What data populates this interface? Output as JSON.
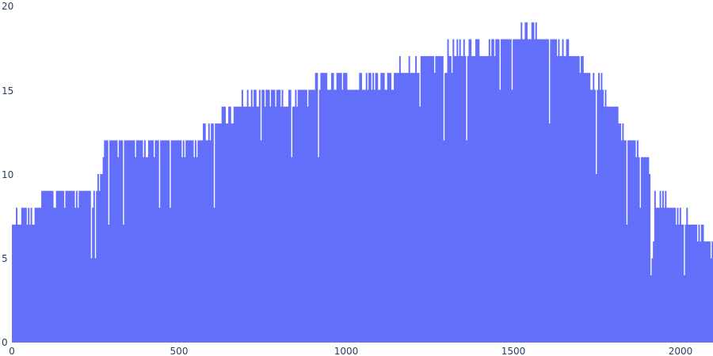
{
  "chart_data": {
    "type": "bar",
    "title": "",
    "xlabel": "",
    "ylabel": "",
    "xlim": [
      0,
      2100
    ],
    "ylim": [
      0,
      20
    ],
    "grid": false,
    "legend": "none",
    "bar_color": "#636efa",
    "x_ticks": [
      "0",
      "500",
      "1000",
      "1500",
      "2000"
    ],
    "y_ticks": [
      "0",
      "5",
      "10",
      "15",
      "20"
    ],
    "bin_width": 4,
    "profile": [
      {
        "x": 0,
        "y": 7
      },
      {
        "x": 80,
        "y": 8
      },
      {
        "x": 90,
        "y": 8.8
      },
      {
        "x": 250,
        "y": 8.8
      },
      {
        "x": 255,
        "y": 9.5
      },
      {
        "x": 270,
        "y": 10
      },
      {
        "x": 275,
        "y": 11
      },
      {
        "x": 285,
        "y": 11.8
      },
      {
        "x": 560,
        "y": 11.8
      },
      {
        "x": 590,
        "y": 12.6
      },
      {
        "x": 640,
        "y": 13.5
      },
      {
        "x": 700,
        "y": 14.2
      },
      {
        "x": 760,
        "y": 14.6
      },
      {
        "x": 880,
        "y": 14.6
      },
      {
        "x": 930,
        "y": 15.6
      },
      {
        "x": 1100,
        "y": 15.4
      },
      {
        "x": 1180,
        "y": 16.2
      },
      {
        "x": 1250,
        "y": 16.5
      },
      {
        "x": 1400,
        "y": 17.6
      },
      {
        "x": 1500,
        "y": 18.2
      },
      {
        "x": 1600,
        "y": 18.2
      },
      {
        "x": 1660,
        "y": 17.2
      },
      {
        "x": 1720,
        "y": 16.2
      },
      {
        "x": 1780,
        "y": 14.6
      },
      {
        "x": 1840,
        "y": 12.2
      },
      {
        "x": 1900,
        "y": 10.8
      },
      {
        "x": 1920,
        "y": 9.2
      },
      {
        "x": 1950,
        "y": 8.2
      },
      {
        "x": 2050,
        "y": 6.8
      },
      {
        "x": 2070,
        "y": 6.2
      },
      {
        "x": 2100,
        "y": 5.6
      }
    ]
  }
}
